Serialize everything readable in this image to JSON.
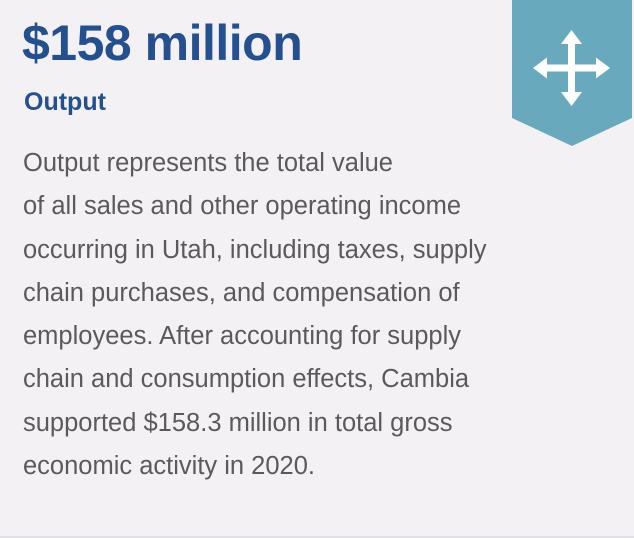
{
  "header": {
    "title": "$158 million",
    "subtitle": "Output"
  },
  "body": {
    "lines": [
      "Output represents the total value",
      "of all sales and other operating income",
      "occurring in Utah, including taxes, supply",
      "chain purchases, and compensation of",
      "employees. After accounting for supply",
      "chain and consumption effects, Cambia",
      "supported $158.3 million in total gross",
      "economic activity in 2020."
    ]
  }
}
